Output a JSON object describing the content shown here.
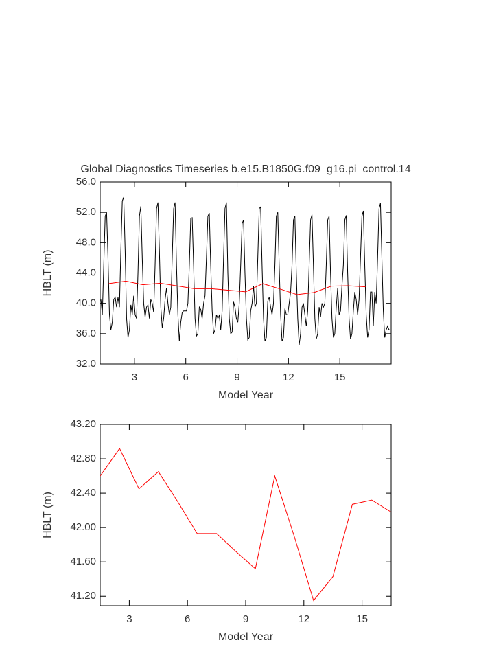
{
  "chart_data": [
    {
      "type": "line",
      "title": "Global Diagnostics Timeseries b.e15.B1850G.f09_g16.pi_control.14",
      "xlabel": "Model Year",
      "ylabel": "HBLT (m)",
      "xlim": [
        1,
        18
      ],
      "xticks": [
        3,
        6,
        9,
        12,
        15
      ],
      "ylim": [
        32,
        56
      ],
      "yticks": [
        {
          "value": 32,
          "label": "32.0"
        },
        {
          "value": 36,
          "label": "36.0"
        },
        {
          "value": 40,
          "label": "40.0"
        },
        {
          "value": 44,
          "label": "44.0"
        },
        {
          "value": 48,
          "label": "48.0"
        },
        {
          "value": 52,
          "label": "52.0"
        },
        {
          "value": 56,
          "label": "56.0"
        }
      ],
      "series": [
        {
          "color": "#000000",
          "x": [
            1.042,
            1.125,
            1.208,
            1.292,
            1.375,
            1.458,
            1.542,
            1.625,
            1.708,
            1.792,
            1.875,
            1.958,
            2.042,
            2.125,
            2.208,
            2.292,
            2.375,
            2.458,
            2.542,
            2.625,
            2.708,
            2.792,
            2.875,
            2.958,
            3.042,
            3.125,
            3.208,
            3.292,
            3.375,
            3.458,
            3.542,
            3.625,
            3.708,
            3.792,
            3.875,
            3.958,
            4.042,
            4.125,
            4.208,
            4.292,
            4.375,
            4.458,
            4.542,
            4.625,
            4.708,
            4.792,
            4.875,
            4.958,
            5.042,
            5.125,
            5.208,
            5.292,
            5.375,
            5.458,
            5.542,
            5.625,
            5.708,
            5.792,
            5.875,
            5.958,
            6.042,
            6.125,
            6.208,
            6.292,
            6.375,
            6.458,
            6.542,
            6.625,
            6.708,
            6.792,
            6.875,
            6.958,
            7.042,
            7.125,
            7.208,
            7.292,
            7.375,
            7.458,
            7.542,
            7.625,
            7.708,
            7.792,
            7.875,
            7.958,
            8.042,
            8.125,
            8.208,
            8.292,
            8.375,
            8.458,
            8.542,
            8.625,
            8.708,
            8.792,
            8.875,
            8.958,
            9.042,
            9.125,
            9.208,
            9.292,
            9.375,
            9.458,
            9.542,
            9.625,
            9.708,
            9.792,
            9.875,
            9.958,
            10.042,
            10.125,
            10.208,
            10.292,
            10.375,
            10.458,
            10.542,
            10.625,
            10.708,
            10.792,
            10.875,
            10.958,
            11.042,
            11.125,
            11.208,
            11.292,
            11.375,
            11.458,
            11.542,
            11.625,
            11.708,
            11.792,
            11.875,
            11.958,
            12.042,
            12.125,
            12.208,
            12.292,
            12.375,
            12.458,
            12.542,
            12.625,
            12.708,
            12.792,
            12.875,
            12.958,
            13.042,
            13.125,
            13.208,
            13.292,
            13.375,
            13.458,
            13.542,
            13.625,
            13.708,
            13.792,
            13.875,
            13.958,
            14.042,
            14.125,
            14.208,
            14.292,
            14.375,
            14.458,
            14.542,
            14.625,
            14.708,
            14.792,
            14.875,
            14.958,
            15.042,
            15.125,
            15.208,
            15.292,
            15.375,
            15.458,
            15.542,
            15.625,
            15.708,
            15.792,
            15.875,
            15.958,
            16.042,
            16.125,
            16.208,
            16.292,
            16.375,
            16.458,
            16.542,
            16.625,
            16.708,
            16.792,
            16.875,
            16.958,
            17.042,
            17.125,
            17.208,
            17.292,
            17.375,
            17.458,
            17.542,
            17.625,
            17.708,
            17.792,
            17.875,
            17.958
          ],
          "values": [
            40.5,
            38.5,
            45,
            51.5,
            52,
            46,
            38.5,
            36.5,
            37.5,
            40.5,
            40.8,
            39.5,
            40.8,
            39.5,
            47,
            53.5,
            54,
            47,
            38,
            35.5,
            36.5,
            39.8,
            38.5,
            41,
            38.5,
            38,
            44,
            51.5,
            52.8,
            46,
            40,
            38.2,
            39.5,
            39.8,
            38,
            40.5,
            40,
            38.8,
            45,
            52.5,
            53.3,
            47,
            39.5,
            36.8,
            38,
            40.5,
            42,
            40,
            38.5,
            39.5,
            46,
            52.5,
            53.3,
            45,
            38.5,
            35,
            37.5,
            38.8,
            39,
            39,
            39,
            40,
            45,
            51.2,
            51.3,
            45,
            38,
            35.7,
            36,
            39.5,
            39.2,
            38,
            40,
            41,
            46,
            51.5,
            51.9,
            45,
            39,
            36,
            36.5,
            38.5,
            38,
            38.4,
            36.5,
            39,
            46,
            52.5,
            53.3,
            44,
            38,
            36,
            36.2,
            40.2,
            39.5,
            38,
            37.5,
            40,
            45,
            50.5,
            51,
            44,
            38,
            35.2,
            35.5,
            39,
            40,
            42.3,
            39.5,
            40,
            46,
            52.5,
            52.7,
            45,
            38,
            35,
            35.5,
            40.3,
            40.8,
            39.5,
            38.5,
            40,
            45,
            51.5,
            52,
            45,
            38.5,
            35,
            35.5,
            39.3,
            38.5,
            38.5,
            40,
            41.5,
            45,
            51,
            51.5,
            44,
            38,
            34.5,
            36,
            39.5,
            40,
            38.5,
            37,
            39,
            45,
            51,
            51.7,
            45,
            38,
            35.3,
            36,
            39.5,
            38.2,
            40,
            39.5,
            40,
            45,
            51,
            51.5,
            44,
            38,
            35.5,
            36,
            39.5,
            42,
            38.5,
            39,
            42.3,
            45,
            51,
            51.6,
            44,
            38,
            35.3,
            36,
            39,
            41.5,
            40.5,
            38.5,
            40.5,
            46,
            51.5,
            52.2,
            45,
            38.5,
            35.5,
            36.5,
            41.5,
            41.5,
            37,
            41.5,
            40,
            46,
            52.5,
            53.2,
            46,
            39,
            35.5,
            36.5,
            37,
            36.5,
            36.5
          ]
        },
        {
          "color": "#ff0000",
          "x": [
            1.5,
            2.5,
            3.5,
            4.5,
            5.5,
            6.5,
            7.5,
            8.5,
            9.5,
            10.5,
            11.5,
            12.5,
            13.5,
            14.5,
            15.5,
            16.5
          ],
          "values": [
            42.6,
            42.92,
            42.45,
            42.65,
            42.3,
            41.93,
            41.93,
            41.72,
            41.52,
            42.6,
            41.9,
            41.15,
            41.43,
            42.27,
            42.32,
            42.18
          ]
        }
      ]
    },
    {
      "type": "line",
      "xlabel": "Model Year",
      "ylabel": "HBLT (m)",
      "xlim": [
        1.5,
        16.5
      ],
      "xticks": [
        3,
        6,
        9,
        12,
        15
      ],
      "ylim": [
        41.09,
        43.2
      ],
      "yticks": [
        {
          "value": 41.2,
          "label": "41.20"
        },
        {
          "value": 41.6,
          "label": "41.60"
        },
        {
          "value": 42,
          "label": "42.00"
        },
        {
          "value": 42.4,
          "label": "42.40"
        },
        {
          "value": 42.8,
          "label": "42.80"
        },
        {
          "value": 43.2,
          "label": "43.20"
        }
      ],
      "series": [
        {
          "color": "#ff0000",
          "x": [
            1.5,
            2.5,
            3.5,
            4.5,
            5.5,
            6.5,
            7.5,
            8.5,
            9.5,
            10.5,
            11.5,
            12.5,
            13.5,
            14.5,
            15.5,
            16.5
          ],
          "values": [
            42.6,
            42.92,
            42.45,
            42.65,
            42.3,
            41.93,
            41.93,
            41.72,
            41.52,
            42.6,
            41.9,
            41.15,
            41.43,
            42.27,
            42.32,
            42.18
          ]
        }
      ]
    }
  ]
}
